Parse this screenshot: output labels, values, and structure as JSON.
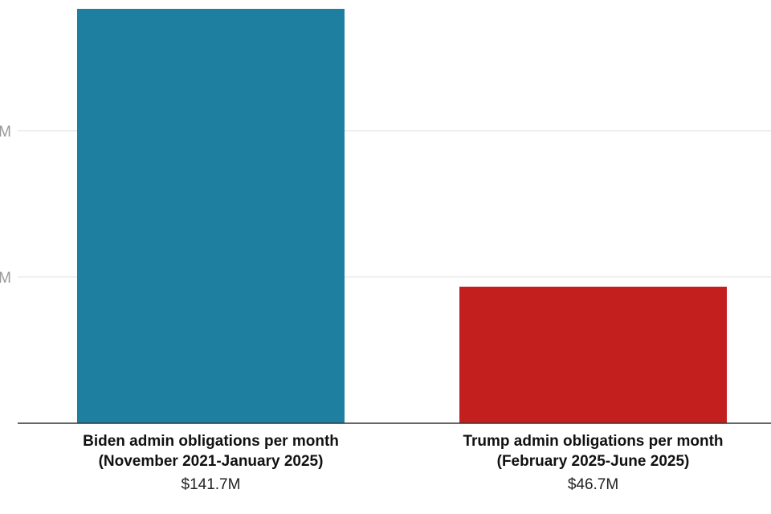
{
  "chart_data": {
    "type": "bar",
    "categories": [
      [
        "Biden admin obligations per month",
        "(November 2021-January 2025)"
      ],
      [
        "Trump admin obligations per month",
        "(February 2025-June 2025)"
      ]
    ],
    "values": [
      141.7,
      46.7
    ],
    "value_labels": [
      "$141.7M",
      "$46.7M"
    ],
    "colors": [
      "#1f7fa1",
      "#c41f1f"
    ],
    "ylim": [
      0,
      141.7
    ],
    "gridlines": [
      50,
      100
    ],
    "tick_labels": [
      "M",
      "M"
    ],
    "grid": true,
    "title": "",
    "xlabel": "",
    "ylabel": ""
  }
}
